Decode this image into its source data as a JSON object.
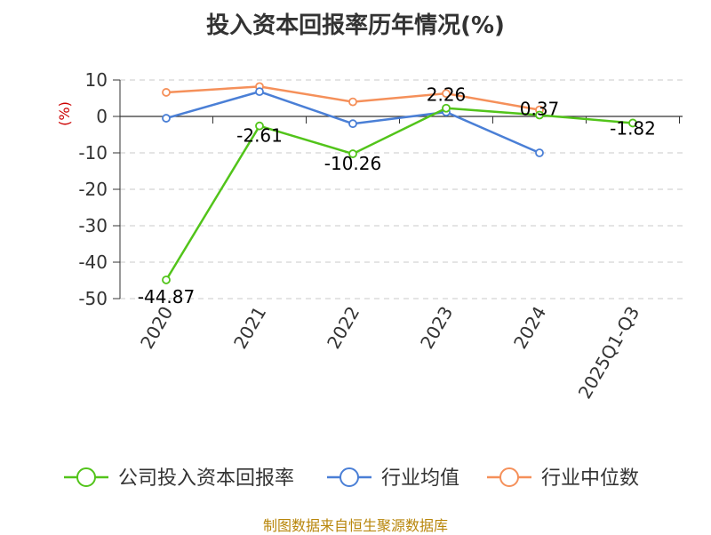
{
  "title": "投入资本回报率历年情况(%)",
  "source": "制图数据来自恒生聚源数据库",
  "chart_data": {
    "type": "line",
    "title": "投入资本回报率历年情况(%)",
    "ylabel": "(%)",
    "xlabel": "",
    "categories": [
      "2020",
      "2021",
      "2022",
      "2023",
      "2024",
      "2025Q1-Q3"
    ],
    "ylim": [
      -50,
      10
    ],
    "yticks": [
      10,
      0,
      -10,
      -20,
      -30,
      -40,
      -50
    ],
    "grid": true,
    "legend_position": "bottom",
    "series": [
      {
        "name": "公司投入资本回报率",
        "color": "#52c41a",
        "values": [
          -44.87,
          -2.61,
          -10.26,
          2.26,
          0.37,
          -1.82
        ],
        "labels": [
          "-44.87",
          "-2.61",
          "-10.26",
          "2.26",
          "0.37",
          "-1.82"
        ]
      },
      {
        "name": "行业均值",
        "color": "#4a7fd6",
        "values": [
          -0.5,
          6.8,
          -2.0,
          1.2,
          -10.0,
          null
        ]
      },
      {
        "name": "行业中位数",
        "color": "#f5905a",
        "values": [
          6.6,
          8.2,
          4.0,
          6.3,
          1.8,
          null
        ]
      }
    ]
  }
}
